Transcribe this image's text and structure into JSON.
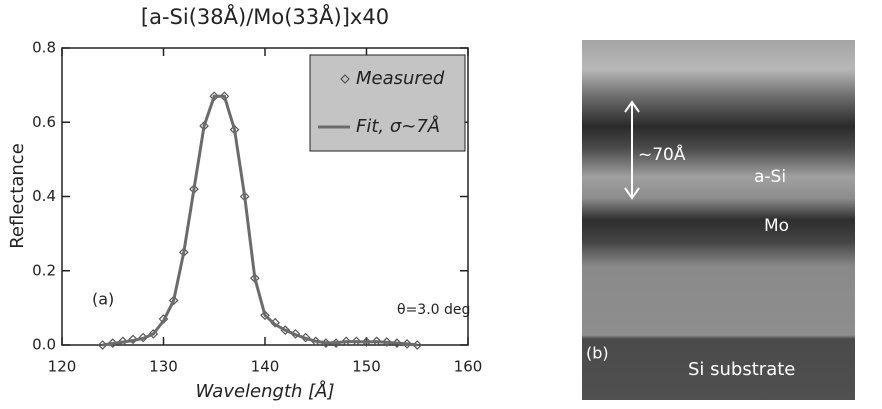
{
  "chart_data": {
    "type": "line",
    "title": "[a-Si(38Å)/Mo(33Å)]x40",
    "x_label": "Wavelength [Å]",
    "y_label": "Reflectance",
    "x": [
      124,
      125,
      126,
      127,
      128,
      129,
      130,
      131,
      132,
      133,
      134,
      135,
      136,
      137,
      138,
      139,
      140,
      141,
      142,
      143,
      144,
      145,
      146,
      147,
      148,
      149,
      150,
      151,
      152,
      153,
      154,
      155
    ],
    "series": [
      {
        "name": "Measured",
        "color": "#555555",
        "marker": "diamond",
        "values": [
          0.0,
          0.005,
          0.01,
          0.015,
          0.02,
          0.03,
          0.07,
          0.12,
          0.25,
          0.42,
          0.59,
          0.67,
          0.67,
          0.58,
          0.4,
          0.18,
          0.08,
          0.06,
          0.04,
          0.03,
          0.02,
          0.01,
          0.005,
          0.005,
          0.01,
          0.01,
          0.008,
          0.01,
          0.008,
          0.005,
          0.003,
          0.0
        ]
      },
      {
        "name": "Fit, σ~7Å",
        "color": "#6b6b6b",
        "values": [
          0.0,
          0.004,
          0.008,
          0.012,
          0.018,
          0.03,
          0.065,
          0.12,
          0.25,
          0.42,
          0.59,
          0.67,
          0.67,
          0.58,
          0.4,
          0.18,
          0.08,
          0.055,
          0.04,
          0.028,
          0.018,
          0.01,
          0.006,
          0.006,
          0.009,
          0.009,
          0.008,
          0.009,
          0.007,
          0.005,
          0.003,
          0.0
        ]
      }
    ],
    "xlim": [
      120,
      160
    ],
    "xticks": [
      120,
      130,
      140,
      150,
      160
    ],
    "ylim": [
      0,
      0.8
    ],
    "yticks": [
      {
        "value": 0,
        "label": "0.0"
      },
      0.2,
      0.4,
      0.6,
      0.8
    ],
    "legend": "upper right",
    "annotations": [
      "(a)",
      "θ=3.0 deg"
    ]
  },
  "image": {
    "labels": [
      "~70Å",
      "a-Si",
      "Mo",
      "(b)",
      "Si substrate"
    ]
  }
}
